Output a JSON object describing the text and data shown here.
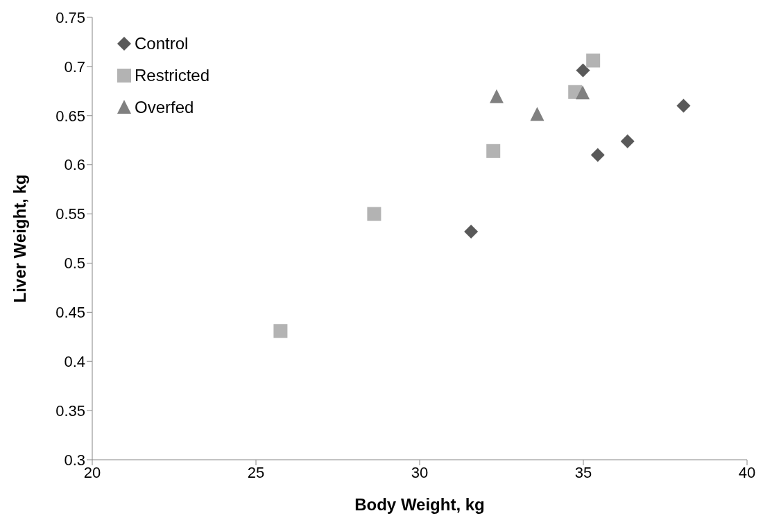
{
  "chart_data": {
    "type": "scatter",
    "xlabel": "Body Weight, kg",
    "ylabel": "Liver Weight, kg",
    "xlim": [
      20,
      40
    ],
    "xticks": [
      20,
      25,
      30,
      35,
      40
    ],
    "ylim": [
      0.3,
      0.75
    ],
    "yticks": [
      0.3,
      0.35,
      0.4,
      0.45,
      0.5,
      0.55,
      0.6,
      0.65,
      0.7,
      0.75
    ],
    "grid": false,
    "legend": "top left",
    "series": [
      {
        "name": "Control",
        "color": "#595959",
        "marker": "diamond",
        "x": [
          31.57,
          34.99,
          35.44,
          36.35,
          38.06
        ],
        "values": [
          0.532,
          0.696,
          0.61,
          0.624,
          0.66
        ]
      },
      {
        "name": "Restricted",
        "color": "#b3b3b3",
        "marker": "square",
        "x": [
          25.75,
          28.61,
          32.25,
          34.75,
          35.3
        ],
        "values": [
          0.431,
          0.55,
          0.614,
          0.674,
          0.706
        ]
      },
      {
        "name": "Overfed",
        "color": "#808080",
        "marker": "triangle",
        "x": [
          32.35,
          33.59,
          34.98
        ],
        "values": [
          0.669,
          0.651,
          0.673
        ]
      }
    ]
  }
}
